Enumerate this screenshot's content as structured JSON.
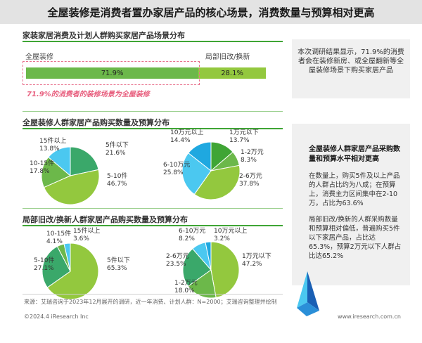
{
  "title": "全屋装修是消费者置办家居产品的核心场景，消费数量与预算相对更高",
  "section1": {
    "title": "家装家居消费及计划人群购买家居产品场景分布",
    "label_left": "全屋装修",
    "label_right": "局部旧改/换新",
    "note": "71.9%的消费者的装修场景为全屋装修"
  },
  "section2_title": "全屋装修人群家居产品购买数量及预算分布",
  "section3_title": "局部旧改/换新人群家居产品购买数量及预算分布",
  "side": {
    "box1": "本次调研结果显示，71.9%的消费者会在装修新房、或全屋翻新等全屋装修场景下购买家居产品",
    "box2_title": "全屋装修人群家居产品采购数量和预算水平相对更高",
    "box2_p1": "在数量上，购买5件及以上产品的人群占比约为八成；在预算上，消费主力区间集中在2-10万，占比为63.6%",
    "box2_p2": "局部旧改/换新的人群采购数量和预算相对偏低，普遍购买5件以下家居产品，占比达65.3%，预算2万元以下人群占比达65.2%"
  },
  "footer": {
    "source": "来源：艾瑞咨询于2023年12月展开的调研，近一年消费、计划人群：N=2000；艾瑞咨询整理并绘制",
    "copyright": "©2024.4 iResearch Inc",
    "website": "www.iresearch.com.cn"
  },
  "colors": {
    "green_dark": "#3fa535",
    "green_mid": "#6cb84a",
    "green_light": "#93c83e",
    "teal": "#3aa86a",
    "blue": "#1fa8e0",
    "sky": "#4bc8f0",
    "pink": "#e8718d"
  },
  "chart_data": [
    {
      "type": "bar",
      "title": "家装家居消费及计划人群购买家居产品场景分布",
      "categories": [
        "全屋装修",
        "局部旧改/换新"
      ],
      "values": [
        71.9,
        28.1
      ],
      "value_labels": [
        "71.9%",
        "28.1%"
      ],
      "stacked": true
    },
    {
      "type": "pie",
      "title": "全屋装修人群家居产品购买数量及预算分布",
      "slices": [
        {
          "label": "5件以下",
          "value": 21.6,
          "text": "21.6%",
          "color": "#3aa86a"
        },
        {
          "label": "5-10件",
          "value": 46.7,
          "text": "46.7%",
          "color": "#93c83e"
        },
        {
          "label": "10-15件",
          "value": 17.8,
          "text": "17.8%",
          "color": "#6cb84a"
        },
        {
          "label": "15件以上",
          "value": 13.8,
          "text": "13.8%",
          "color": "#4bc8f0"
        }
      ]
    },
    {
      "type": "pie",
      "slices": [
        {
          "label": "1万元以下",
          "value": 13.7,
          "text": "13.7%",
          "color": "#3fa535"
        },
        {
          "label": "1-2万元",
          "value": 8.3,
          "text": "8.3%",
          "color": "#6cb84a"
        },
        {
          "label": "2-6万元",
          "value": 37.8,
          "text": "37.8%",
          "color": "#93c83e"
        },
        {
          "label": "6-10万元",
          "value": 25.8,
          "text": "25.8%",
          "color": "#4bc8f0"
        },
        {
          "label": "10万元以上",
          "value": 14.4,
          "text": "14.4%",
          "color": "#1fa8e0"
        }
      ]
    },
    {
      "type": "pie",
      "title": "局部旧改/换新人群家居产品购买数量及预算分布",
      "slices": [
        {
          "label": "5件以下",
          "value": 65.3,
          "text": "65.3%",
          "color": "#93c83e"
        },
        {
          "label": "5-10件",
          "value": 27.1,
          "text": "27.1%",
          "color": "#3aa86a"
        },
        {
          "label": "10-15件",
          "value": 4.1,
          "text": "4.1%",
          "color": "#6cb84a"
        },
        {
          "label": "15件以上",
          "value": 3.6,
          "text": "3.6%",
          "color": "#4bc8f0"
        }
      ]
    },
    {
      "type": "pie",
      "slices": [
        {
          "label": "1万元以下",
          "value": 47.2,
          "text": "47.2%",
          "color": "#93c83e"
        },
        {
          "label": "1-2万元",
          "value": 18.0,
          "text": "18.0%",
          "color": "#6cb84a"
        },
        {
          "label": "2-6万元",
          "value": 23.5,
          "text": "23.5%",
          "color": "#3aa86a"
        },
        {
          "label": "6-10万元",
          "value": 8.2,
          "text": "8.2%",
          "color": "#4bc8f0"
        },
        {
          "label": "10万元以上",
          "value": 3.2,
          "text": "3.2%",
          "color": "#1fa8e0"
        }
      ]
    }
  ]
}
